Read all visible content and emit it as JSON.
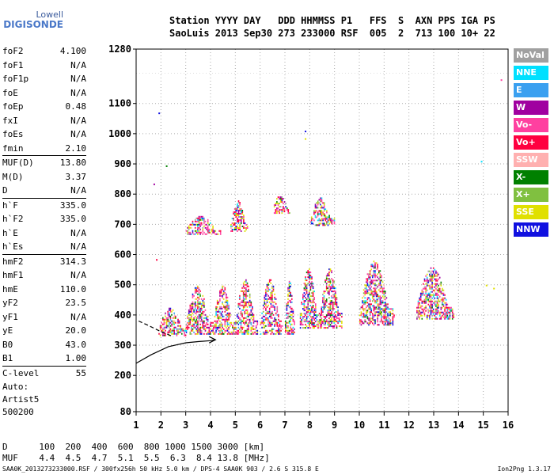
{
  "logo": {
    "line1": "Lowell",
    "line2": "DIGISONDE"
  },
  "header": {
    "line1": "Station YYYY DAY   DDD HHMMSS P1   FFS  S  AXN PPS IGA PS",
    "line2": "SaoLuis 2013 Sep30 273 233000 RSF  005  2  713 100 10+ 22"
  },
  "params": [
    {
      "name": "foF2",
      "value": "4.100"
    },
    {
      "name": "foF1",
      "value": "N/A"
    },
    {
      "name": "foF1p",
      "value": "N/A"
    },
    {
      "name": "foE",
      "value": "N/A"
    },
    {
      "name": "foEp",
      "value": "0.48"
    },
    {
      "name": "fxI",
      "value": "N/A"
    },
    {
      "name": "foEs",
      "value": "N/A"
    },
    {
      "name": "fmin",
      "value": "2.10"
    },
    {
      "name": "MUF(D)",
      "value": "13.80"
    },
    {
      "name": "M(D)",
      "value": "3.37"
    },
    {
      "name": "D",
      "value": "N/A"
    },
    {
      "name": "h`F",
      "value": "335.0"
    },
    {
      "name": "h`F2",
      "value": "335.0"
    },
    {
      "name": "h`E",
      "value": "N/A"
    },
    {
      "name": "h`Es",
      "value": "N/A"
    },
    {
      "name": "hmF2",
      "value": "314.3"
    },
    {
      "name": "hmF1",
      "value": "N/A"
    },
    {
      "name": "hmE",
      "value": "110.0"
    },
    {
      "name": "yF2",
      "value": "23.5"
    },
    {
      "name": "yF1",
      "value": "N/A"
    },
    {
      "name": "yE",
      "value": "20.0"
    },
    {
      "name": "B0",
      "value": "43.0"
    },
    {
      "name": "B1",
      "value": "1.00"
    },
    {
      "name": "C-level",
      "value": "55"
    }
  ],
  "auto": {
    "label": "Auto:",
    "artist": "Artist5",
    "code": "500200"
  },
  "legend": [
    {
      "label": "NoVal",
      "color": "#a0a0a0"
    },
    {
      "label": "NNE",
      "color": "#00e0ff"
    },
    {
      "label": "E",
      "color": "#3aa0f0"
    },
    {
      "label": "W",
      "color": "#a000a0"
    },
    {
      "label": "Vo-",
      "color": "#ff40a0"
    },
    {
      "label": "Vo+",
      "color": "#ff0040"
    },
    {
      "label": "SSW",
      "color": "#ffb0b0"
    },
    {
      "label": "X-",
      "color": "#008000"
    },
    {
      "label": "X+",
      "color": "#80c040"
    },
    {
      "label": "SSE",
      "color": "#e0e000"
    },
    {
      "label": "NNW",
      "color": "#1010e0"
    }
  ],
  "footer": {
    "d_line": "D      100  200  400  600  800 1000 1500 3000 [km]",
    "muf_line": "MUF    4.4  4.5  4.7  5.1  5.5  6.3  8.4 13.8 [MHz]",
    "file_line": "SAA0K_2013273233000.RSF / 300fx256h 50 kHz 5.0 km / DPS-4 SAA0K 903 / 2.6 S 315.8 E",
    "version": "Ion2Png 1.3.17"
  },
  "chart_data": {
    "type": "scatter",
    "xlabel": "",
    "ylabel": "",
    "xlim": [
      1,
      16
    ],
    "ylim": [
      80,
      1280
    ],
    "x_ticks": [
      1,
      2,
      3,
      4,
      5,
      6,
      7,
      8,
      9,
      10,
      11,
      12,
      13,
      14,
      15,
      16
    ],
    "y_ticks": [
      80,
      200,
      300,
      400,
      500,
      600,
      700,
      800,
      900,
      1000,
      1100,
      1280
    ],
    "grid": true,
    "clusters": [
      {
        "x": [
          1.9,
          3.0
        ],
        "y": [
          335,
          430
        ]
      },
      {
        "x": [
          3.0,
          4.1
        ],
        "y": [
          340,
          500
        ]
      },
      {
        "x": [
          4.1,
          5.0
        ],
        "y": [
          340,
          500
        ]
      },
      {
        "x": [
          5.0,
          5.9
        ],
        "y": [
          340,
          520
        ]
      },
      {
        "x": [
          6.0,
          6.9
        ],
        "y": [
          340,
          520
        ]
      },
      {
        "x": [
          7.0,
          7.4
        ],
        "y": [
          340,
          520
        ]
      },
      {
        "x": [
          7.6,
          8.4
        ],
        "y": [
          360,
          560
        ]
      },
      {
        "x": [
          8.4,
          9.3
        ],
        "y": [
          360,
          560
        ]
      },
      {
        "x": [
          10.0,
          11.4
        ],
        "y": [
          370,
          580
        ]
      },
      {
        "x": [
          12.3,
          13.8
        ],
        "y": [
          390,
          560
        ]
      },
      {
        "x": [
          3.0,
          4.4
        ],
        "y": [
          670,
          730
        ]
      },
      {
        "x": [
          4.8,
          5.5
        ],
        "y": [
          680,
          780
        ]
      },
      {
        "x": [
          6.5,
          7.2
        ],
        "y": [
          740,
          800
        ]
      },
      {
        "x": [
          8.0,
          9.0
        ],
        "y": [
          700,
          790
        ]
      }
    ],
    "outliers": [
      {
        "x": 1.7,
        "y": 835
      },
      {
        "x": 1.8,
        "y": 585
      },
      {
        "x": 1.9,
        "y": 1070
      },
      {
        "x": 2.2,
        "y": 895
      },
      {
        "x": 7.8,
        "y": 1010
      },
      {
        "x": 7.8,
        "y": 985
      },
      {
        "x": 14.9,
        "y": 910
      },
      {
        "x": 15.7,
        "y": 1180
      },
      {
        "x": 15.1,
        "y": 500
      },
      {
        "x": 15.4,
        "y": 490
      }
    ],
    "profile_curve": {
      "x": [
        1.0,
        1.6,
        2.3,
        3.0,
        3.5,
        4.0,
        4.2
      ],
      "y": [
        240,
        268,
        295,
        308,
        312,
        315,
        318
      ]
    },
    "dashed_curve": {
      "x": [
        1.1,
        1.5,
        2.0,
        2.5
      ],
      "y": [
        380,
        365,
        345,
        328
      ]
    }
  }
}
